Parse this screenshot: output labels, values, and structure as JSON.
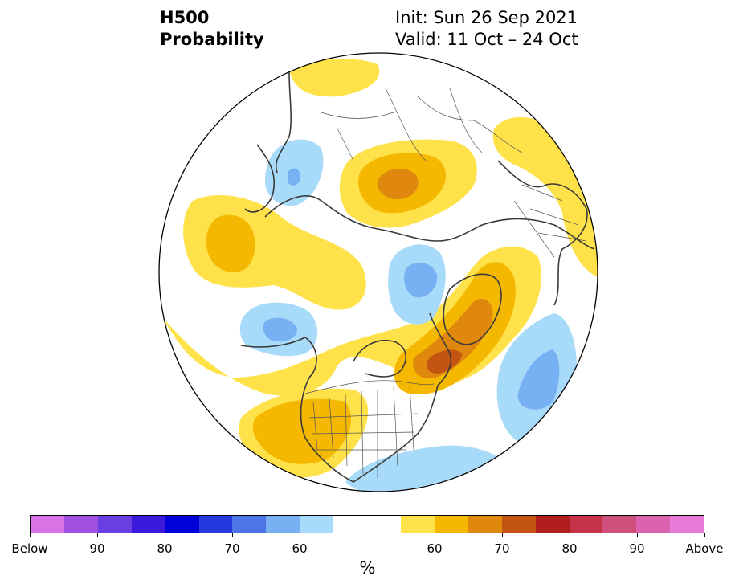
{
  "header": {
    "variable": "H500",
    "product": "Probability",
    "init": "Init: Sun 26 Sep 2021",
    "valid": "Valid: 11 Oct – 24 Oct"
  },
  "colorbar": {
    "unit": "%",
    "colors": [
      "#d873e6",
      "#a050e0",
      "#6b3ee2",
      "#3b1adb",
      "#0000d8",
      "#2538de",
      "#4e75e8",
      "#77b0f3",
      "#a8daf9",
      "#ffffff",
      "#ffffff",
      "#ffe24a",
      "#f5b800",
      "#e0880e",
      "#c45412",
      "#b01e20",
      "#c43348",
      "#cf4f7d",
      "#db62ae",
      "#e87ad8"
    ],
    "labels": [
      {
        "text": "Below",
        "edge": 0
      },
      {
        "text": "90",
        "edge": 2
      },
      {
        "text": "80",
        "edge": 4
      },
      {
        "text": "70",
        "edge": 6
      },
      {
        "text": "60",
        "edge": 8
      },
      {
        "text": "60",
        "edge": 12
      },
      {
        "text": "70",
        "edge": 14
      },
      {
        "text": "80",
        "edge": 16
      },
      {
        "text": "90",
        "edge": 18
      },
      {
        "text": "Above",
        "edge": 20
      }
    ]
  },
  "map": {
    "colors": {
      "above_light": "#ffe24a",
      "above_mid": "#f5b800",
      "above_dark": "#e0880e",
      "above_darker": "#c45412",
      "below_light": "#a8daf9",
      "below_mid": "#77b0f3",
      "coastline": "#3a3a3a",
      "border": "#555555"
    }
  }
}
